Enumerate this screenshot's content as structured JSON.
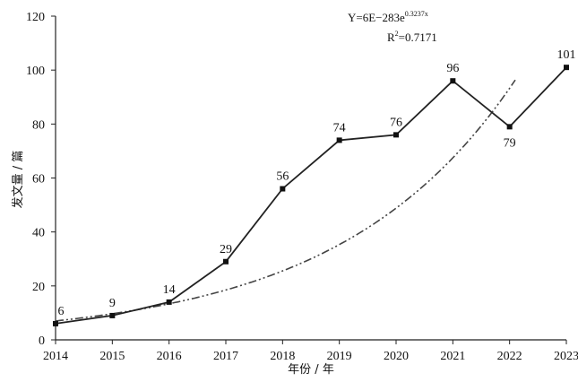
{
  "chart_data": {
    "type": "line",
    "title": "",
    "xlabel": "年份 / 年",
    "ylabel": "发文量 / 篇",
    "categories": [
      "2014",
      "2015",
      "2016",
      "2017",
      "2018",
      "2019",
      "2020",
      "2021",
      "2022",
      "2023"
    ],
    "ylim": [
      0,
      120
    ],
    "yticks": [
      0,
      20,
      40,
      60,
      80,
      100,
      120
    ],
    "grid": false,
    "series": [
      {
        "name": "",
        "style": "solid-with-square-markers",
        "values": [
          6,
          9,
          14,
          29,
          56,
          74,
          76,
          96,
          79,
          101
        ],
        "data_labels": [
          "6",
          "9",
          "14",
          "29",
          "56",
          "74",
          "76",
          "96",
          "79",
          "101"
        ]
      },
      {
        "name": "",
        "style": "dash-dot-trendline",
        "model": "exponential",
        "x_range": [
          2014,
          2022.1
        ]
      }
    ],
    "annotation": {
      "equation_prefix": "Y=6E−283e",
      "equation_exponent": "0.3237x",
      "r2_prefix": "R",
      "r2_sup": "2",
      "r2_value": "=0.7171"
    }
  }
}
